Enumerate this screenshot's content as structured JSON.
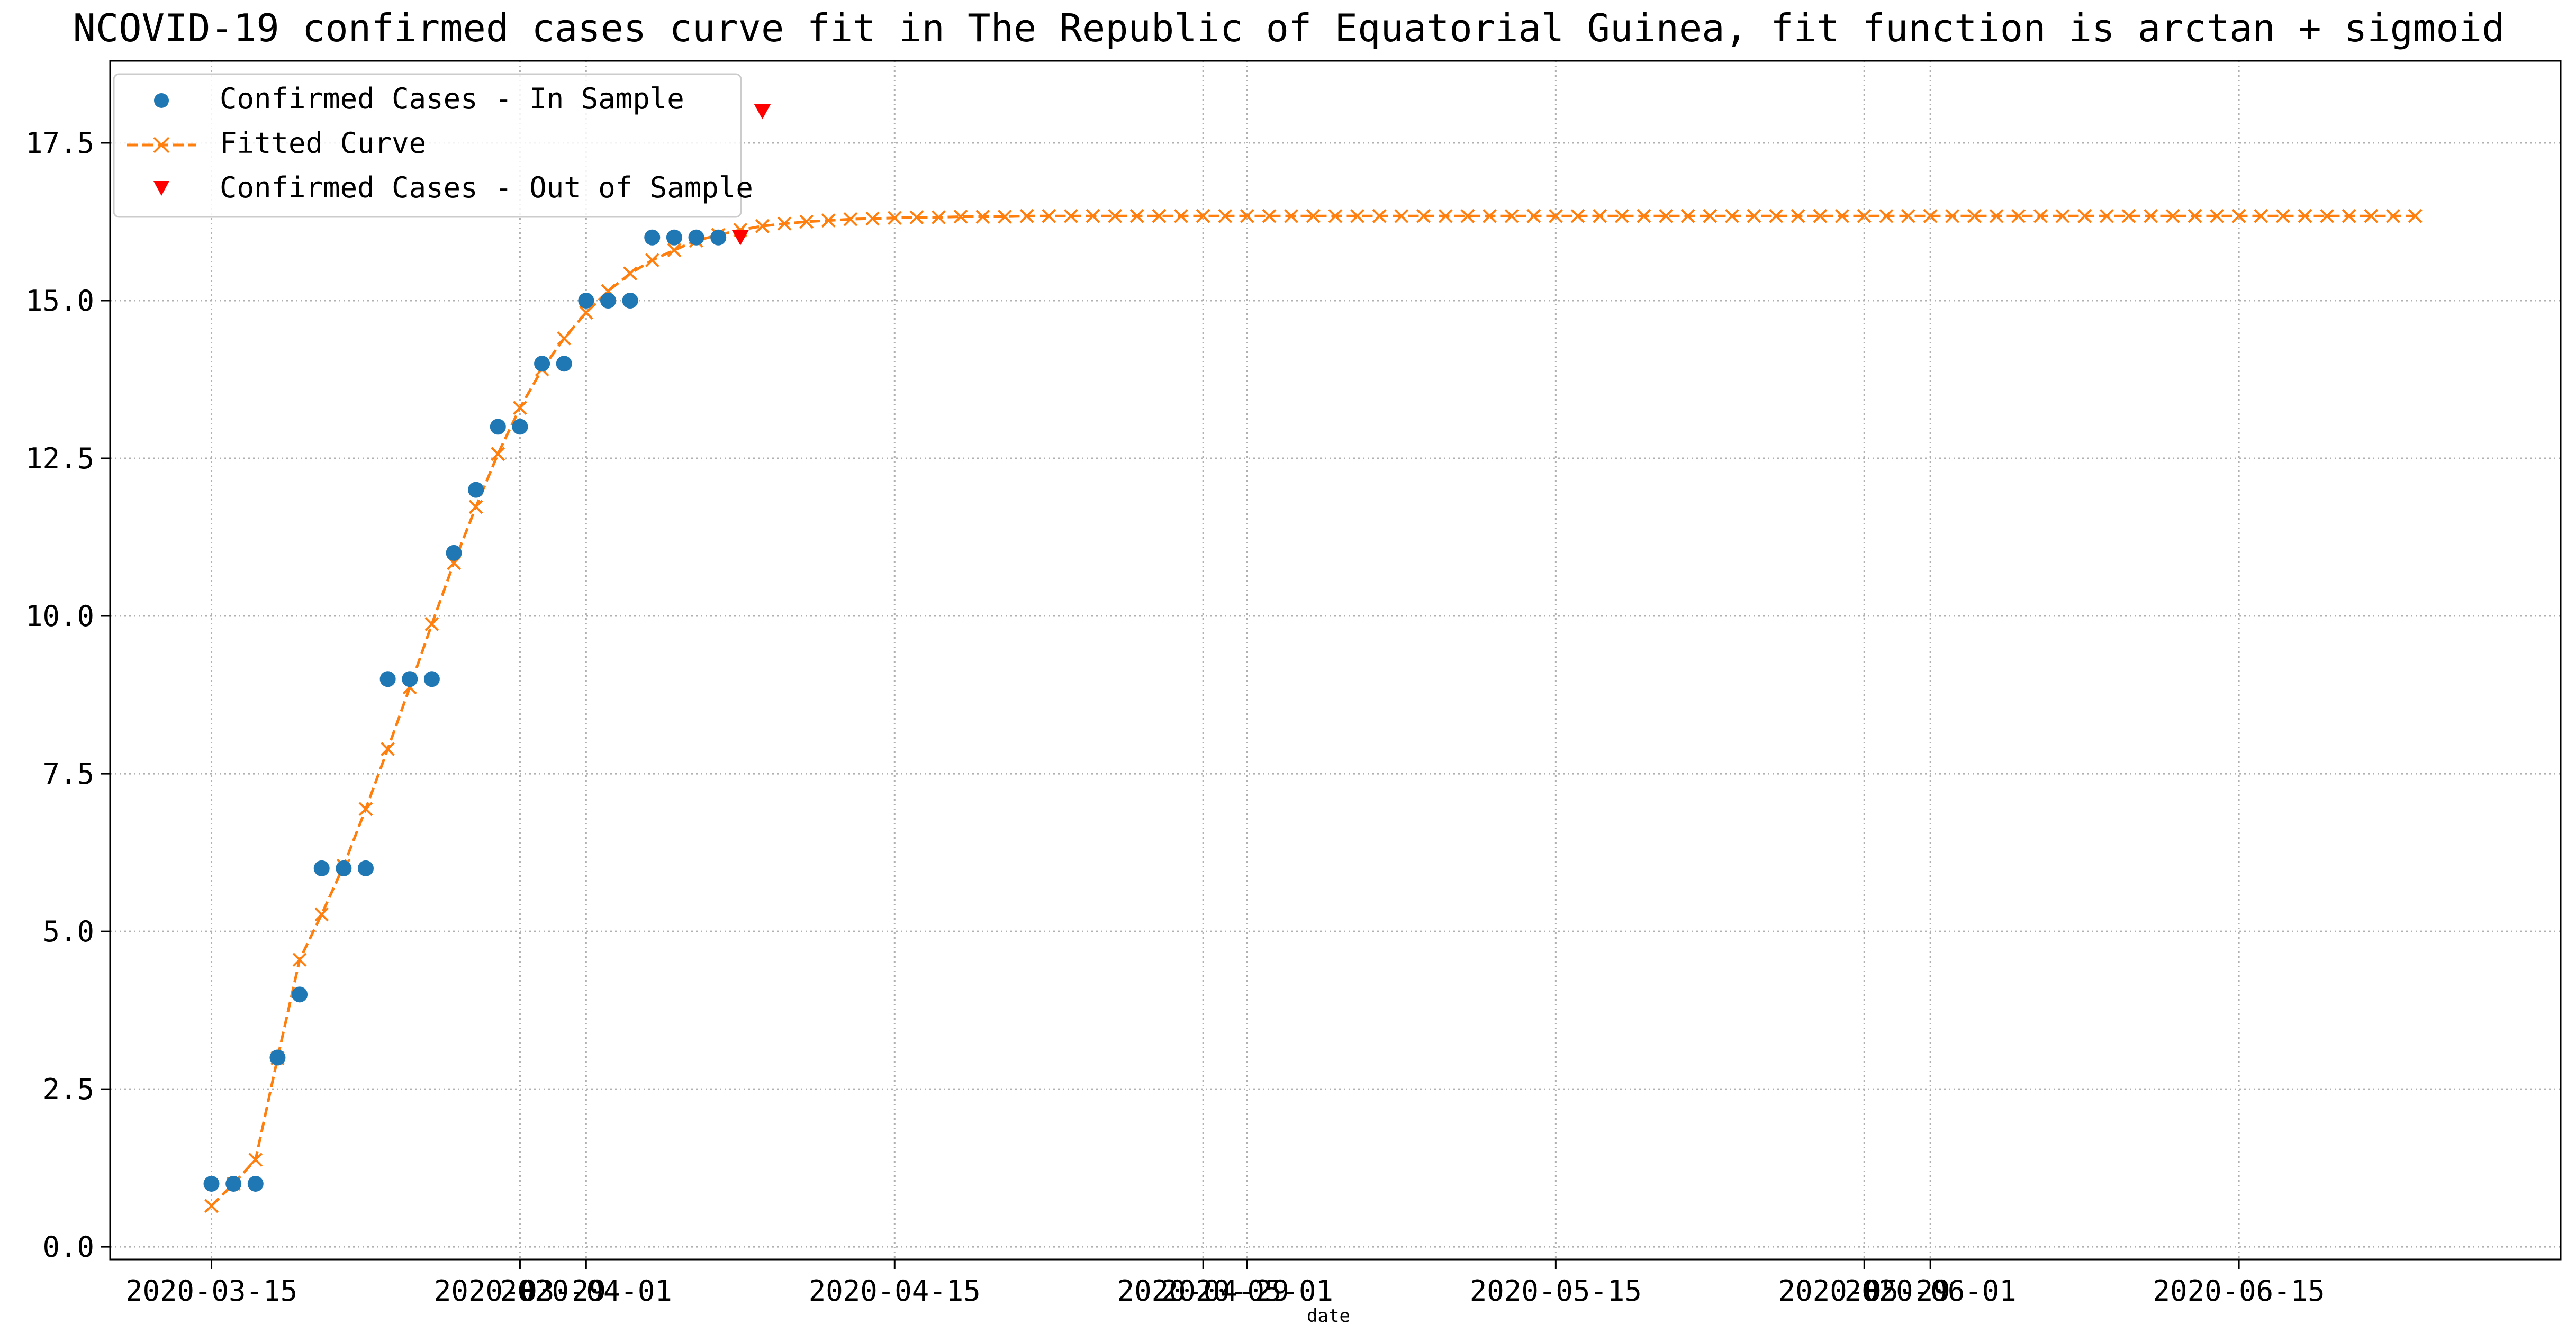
{
  "chart_data": {
    "type": "line",
    "title": "NCOVID-19 confirmed cases curve fit in The Republic of Equatorial Guinea, fit function is arctan + sigmoid",
    "xlabel": "date",
    "ylabel": "",
    "ylim": [
      -0.2,
      18.8
    ],
    "x_ticks": [
      "2020-03-15",
      "2020-03-29",
      "2020-04-01",
      "2020-04-15",
      "2020-04-29",
      "2020-05-01",
      "2020-05-15",
      "2020-05-29",
      "2020-06-01",
      "2020-06-15"
    ],
    "y_ticks": [
      0.0,
      2.5,
      5.0,
      7.5,
      10.0,
      12.5,
      15.0,
      17.5
    ],
    "y_tick_labels": [
      "0.0",
      "2.5",
      "5.0",
      "7.5",
      "10.0",
      "12.5",
      "15.0",
      "17.5"
    ],
    "grid": true,
    "legend_position": "top-left",
    "series": [
      {
        "name": "Confirmed Cases - In Sample",
        "marker": "circle",
        "color": "#1f77b4",
        "x": [
          "2020-03-15",
          "2020-03-16",
          "2020-03-17",
          "2020-03-18",
          "2020-03-19",
          "2020-03-20",
          "2020-03-21",
          "2020-03-22",
          "2020-03-23",
          "2020-03-24",
          "2020-03-25",
          "2020-03-26",
          "2020-03-27",
          "2020-03-28",
          "2020-03-29",
          "2020-03-30",
          "2020-03-31",
          "2020-04-01",
          "2020-04-02",
          "2020-04-03",
          "2020-04-04",
          "2020-04-05",
          "2020-04-06",
          "2020-04-07"
        ],
        "y": [
          1,
          1,
          1,
          3,
          4,
          6,
          6,
          6,
          9,
          9,
          9,
          11,
          12,
          13,
          13,
          14,
          14,
          15,
          15,
          15,
          16,
          16,
          16,
          16
        ]
      },
      {
        "name": "Fitted Curve",
        "marker": "x",
        "linestyle": "dashed",
        "color": "#ff7f0e",
        "x_start": "2020-03-15",
        "x_end": "2020-06-24",
        "y": [
          0.65,
          1.0,
          1.38,
          2.99,
          4.55,
          5.27,
          6.04,
          6.94,
          7.89,
          8.87,
          9.87,
          10.84,
          11.73,
          12.57,
          13.3,
          13.91,
          14.4,
          14.81,
          15.15,
          15.43,
          15.64,
          15.8,
          15.95,
          16.04,
          16.12,
          16.18,
          16.22,
          16.25,
          16.27,
          16.29,
          16.3,
          16.31,
          16.32,
          16.32,
          16.33,
          16.33,
          16.33,
          16.34,
          16.34,
          16.34,
          16.34,
          16.34,
          16.34,
          16.34,
          16.34,
          16.34,
          16.34,
          16.34,
          16.34,
          16.34,
          16.34,
          16.34,
          16.34,
          16.34,
          16.34,
          16.34,
          16.34,
          16.34,
          16.34,
          16.34,
          16.34,
          16.34,
          16.34,
          16.34,
          16.34,
          16.34,
          16.34,
          16.34,
          16.34,
          16.34,
          16.34,
          16.34,
          16.34,
          16.34,
          16.34,
          16.34,
          16.34,
          16.34,
          16.34,
          16.34,
          16.34,
          16.34,
          16.34,
          16.34,
          16.34,
          16.34,
          16.34,
          16.34,
          16.34,
          16.34,
          16.34,
          16.34,
          16.34,
          16.34,
          16.34,
          16.34,
          16.34,
          16.34,
          16.34,
          16.34,
          16.34
        ]
      },
      {
        "name": "Confirmed Cases - Out of Sample",
        "marker": "triangle-down",
        "color": "#ff0000",
        "x": [
          "2020-04-08",
          "2020-04-09"
        ],
        "y": [
          16,
          18
        ]
      }
    ]
  }
}
